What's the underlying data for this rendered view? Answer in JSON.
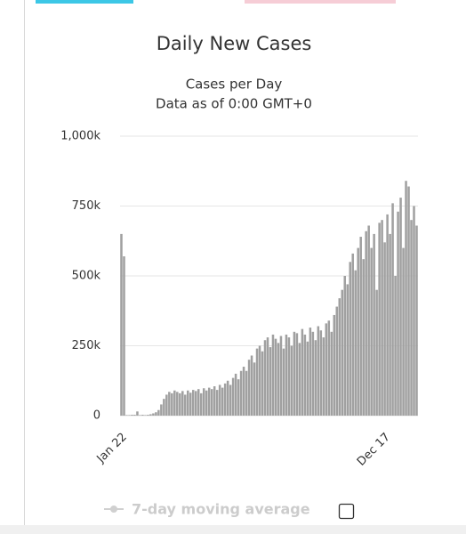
{
  "chart_data": {
    "type": "bar",
    "title": "Daily New Cases",
    "subtitle": [
      "Cases per Day",
      "Data as of 0:00 GMT+0"
    ],
    "color": "#a0a0a0",
    "grid": true,
    "ylim": [
      0,
      1000000
    ],
    "yticks": [
      0,
      {
        "value": 250000,
        "label": "250k"
      },
      {
        "value": 500000,
        "label": "500k"
      },
      {
        "value": 750000,
        "label": "750k"
      },
      {
        "value": 1000000,
        "label": "1,000k"
      }
    ],
    "categories": [
      "Jan 22",
      null,
      null,
      null,
      null,
      null,
      null,
      null,
      null,
      null,
      null,
      null,
      null,
      null,
      null,
      null,
      null,
      null,
      null,
      null,
      null,
      null,
      null,
      null,
      null,
      null,
      null,
      null,
      null,
      null,
      null,
      null,
      null,
      null,
      null,
      null,
      null,
      null,
      null,
      null,
      null,
      null,
      null,
      null,
      null,
      null,
      null,
      null,
      null,
      null,
      null,
      null,
      null,
      null,
      null,
      null,
      null,
      null,
      null,
      null,
      null,
      null,
      null,
      null,
      null,
      null,
      null,
      null,
      null,
      null,
      null,
      null,
      null,
      null,
      null,
      null,
      null,
      null,
      null,
      null,
      null,
      null,
      null,
      null,
      null,
      null,
      null,
      null,
      null,
      null,
      null,
      null,
      null,
      null,
      null,
      null,
      null,
      null,
      null,
      "Dec 17",
      null,
      null,
      null,
      null,
      null,
      null,
      null,
      null,
      null,
      null,
      null,
      null
    ],
    "values": [
      650000,
      570000,
      2000,
      2000,
      3000,
      3000,
      15000,
      2000,
      3000,
      2000,
      3000,
      5000,
      8000,
      12000,
      20000,
      40000,
      60000,
      75000,
      85000,
      80000,
      90000,
      85000,
      80000,
      88000,
      75000,
      90000,
      82000,
      92000,
      88000,
      95000,
      80000,
      98000,
      90000,
      100000,
      95000,
      105000,
      92000,
      110000,
      100000,
      115000,
      125000,
      110000,
      135000,
      150000,
      130000,
      160000,
      175000,
      160000,
      200000,
      215000,
      190000,
      240000,
      250000,
      230000,
      270000,
      280000,
      245000,
      290000,
      275000,
      260000,
      285000,
      240000,
      290000,
      280000,
      250000,
      300000,
      295000,
      260000,
      310000,
      290000,
      265000,
      315000,
      300000,
      270000,
      320000,
      305000,
      280000,
      330000,
      340000,
      300000,
      360000,
      390000,
      420000,
      450000,
      500000,
      470000,
      550000,
      580000,
      520000,
      600000,
      640000,
      560000,
      660000,
      680000,
      600000,
      650000,
      450000,
      690000,
      700000,
      620000,
      720000,
      650000,
      760000,
      500000,
      730000,
      780000,
      600000,
      840000,
      820000,
      700000,
      750000,
      680000
    ],
    "legend_items": [
      "7-day moving average"
    ]
  }
}
